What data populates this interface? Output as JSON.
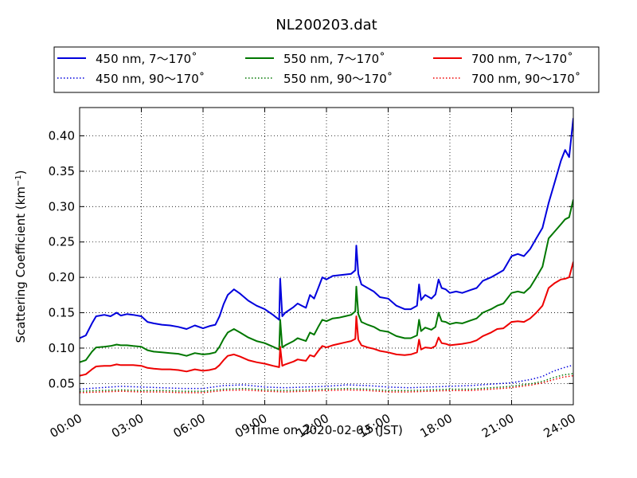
{
  "chart_data": {
    "type": "line",
    "title": "NL200203.dat",
    "xlabel": "Time on 2020-02-03 (JST)",
    "ylabel": "Scattering Coefficient (km",
    "ylabel_unit_exponent": "−1",
    "ylabel_close": ")",
    "xlim": [
      0,
      24
    ],
    "ylim": [
      0.02,
      0.44
    ],
    "x_ticks": [
      0,
      3,
      6,
      9,
      12,
      15,
      18,
      21,
      24
    ],
    "x_tick_labels": [
      "00:00",
      "03:00",
      "06:00",
      "09:00",
      "12:00",
      "15:00",
      "18:00",
      "21:00",
      "24:00"
    ],
    "y_ticks": [
      0.05,
      0.1,
      0.15,
      0.2,
      0.25,
      0.3,
      0.35,
      0.4
    ],
    "y_tick_labels": [
      "0.05",
      "0.10",
      "0.15",
      "0.20",
      "0.25",
      "0.30",
      "0.35",
      "0.40"
    ],
    "grid": true,
    "legend_placement": "top, above plot, 3 columns",
    "series": [
      {
        "name": "450 nm, 7～170˚",
        "color": "#0000dd",
        "style": "solid",
        "x": [
          0.0,
          0.3,
          0.6,
          0.8,
          1.2,
          1.5,
          1.8,
          2.0,
          2.3,
          2.6,
          3.0,
          3.3,
          3.6,
          4.0,
          4.4,
          4.8,
          5.2,
          5.6,
          6.0,
          6.3,
          6.6,
          6.8,
          7.0,
          7.2,
          7.5,
          7.8,
          8.2,
          8.6,
          9.0,
          9.4,
          9.7,
          9.75,
          9.85,
          10.0,
          10.4,
          10.6,
          10.8,
          11.0,
          11.2,
          11.4,
          11.6,
          11.8,
          12.0,
          12.3,
          12.6,
          12.9,
          13.2,
          13.4,
          13.45,
          13.55,
          13.7,
          14.0,
          14.3,
          14.6,
          15.0,
          15.4,
          15.8,
          16.1,
          16.4,
          16.5,
          16.6,
          16.8,
          17.1,
          17.3,
          17.45,
          17.6,
          17.8,
          18.0,
          18.3,
          18.6,
          19.0,
          19.3,
          19.6,
          20.0,
          20.3,
          20.6,
          21.0,
          21.3,
          21.6,
          21.9,
          22.2,
          22.5,
          22.8,
          23.1,
          23.4,
          23.6,
          23.8,
          24.0
        ],
        "y": [
          0.114,
          0.118,
          0.135,
          0.145,
          0.147,
          0.145,
          0.15,
          0.146,
          0.148,
          0.147,
          0.145,
          0.137,
          0.135,
          0.133,
          0.132,
          0.13,
          0.127,
          0.132,
          0.128,
          0.131,
          0.133,
          0.145,
          0.162,
          0.175,
          0.183,
          0.177,
          0.167,
          0.16,
          0.155,
          0.147,
          0.14,
          0.198,
          0.145,
          0.15,
          0.158,
          0.163,
          0.16,
          0.157,
          0.175,
          0.17,
          0.185,
          0.2,
          0.197,
          0.202,
          0.203,
          0.204,
          0.205,
          0.21,
          0.245,
          0.205,
          0.19,
          0.185,
          0.18,
          0.172,
          0.17,
          0.16,
          0.155,
          0.155,
          0.16,
          0.19,
          0.168,
          0.175,
          0.17,
          0.176,
          0.197,
          0.185,
          0.183,
          0.178,
          0.18,
          0.178,
          0.182,
          0.185,
          0.195,
          0.2,
          0.205,
          0.21,
          0.23,
          0.233,
          0.23,
          0.24,
          0.255,
          0.27,
          0.305,
          0.335,
          0.365,
          0.38,
          0.37,
          0.425
        ]
      },
      {
        "name": "550 nm, 7～170˚",
        "color": "#007700",
        "style": "solid",
        "x": [
          0.0,
          0.3,
          0.6,
          0.8,
          1.2,
          1.5,
          1.8,
          2.0,
          2.3,
          2.6,
          3.0,
          3.3,
          3.6,
          4.0,
          4.4,
          4.8,
          5.2,
          5.6,
          6.0,
          6.3,
          6.6,
          6.8,
          7.0,
          7.2,
          7.5,
          7.8,
          8.2,
          8.6,
          9.0,
          9.4,
          9.7,
          9.75,
          9.85,
          10.0,
          10.4,
          10.6,
          10.8,
          11.0,
          11.2,
          11.4,
          11.6,
          11.8,
          12.0,
          12.3,
          12.6,
          12.9,
          13.2,
          13.4,
          13.45,
          13.55,
          13.7,
          14.0,
          14.3,
          14.6,
          15.0,
          15.4,
          15.8,
          16.1,
          16.4,
          16.5,
          16.6,
          16.8,
          17.1,
          17.3,
          17.45,
          17.6,
          17.8,
          18.0,
          18.3,
          18.6,
          19.0,
          19.3,
          19.6,
          20.0,
          20.3,
          20.6,
          21.0,
          21.3,
          21.6,
          21.9,
          22.2,
          22.5,
          22.8,
          23.1,
          23.4,
          23.6,
          23.8,
          24.0
        ],
        "y": [
          0.08,
          0.083,
          0.095,
          0.101,
          0.102,
          0.103,
          0.105,
          0.104,
          0.104,
          0.103,
          0.102,
          0.097,
          0.095,
          0.094,
          0.093,
          0.092,
          0.089,
          0.093,
          0.091,
          0.092,
          0.094,
          0.102,
          0.113,
          0.122,
          0.127,
          0.122,
          0.115,
          0.11,
          0.107,
          0.102,
          0.098,
          0.14,
          0.101,
          0.104,
          0.11,
          0.114,
          0.112,
          0.11,
          0.122,
          0.119,
          0.13,
          0.14,
          0.138,
          0.142,
          0.143,
          0.145,
          0.147,
          0.152,
          0.187,
          0.148,
          0.137,
          0.133,
          0.13,
          0.125,
          0.123,
          0.117,
          0.114,
          0.114,
          0.118,
          0.14,
          0.124,
          0.129,
          0.126,
          0.13,
          0.15,
          0.138,
          0.137,
          0.134,
          0.136,
          0.135,
          0.139,
          0.142,
          0.15,
          0.155,
          0.16,
          0.163,
          0.178,
          0.18,
          0.178,
          0.186,
          0.2,
          0.215,
          0.255,
          0.265,
          0.275,
          0.282,
          0.285,
          0.31
        ]
      },
      {
        "name": "700 nm, 7～170˚",
        "color": "#ee0000",
        "style": "solid",
        "x": [
          0.0,
          0.3,
          0.6,
          0.8,
          1.2,
          1.5,
          1.8,
          2.0,
          2.3,
          2.6,
          3.0,
          3.3,
          3.6,
          4.0,
          4.4,
          4.8,
          5.2,
          5.6,
          6.0,
          6.3,
          6.6,
          6.8,
          7.0,
          7.2,
          7.5,
          7.8,
          8.2,
          8.6,
          9.0,
          9.4,
          9.7,
          9.75,
          9.85,
          10.0,
          10.4,
          10.6,
          10.8,
          11.0,
          11.2,
          11.4,
          11.6,
          11.8,
          12.0,
          12.3,
          12.6,
          12.9,
          13.2,
          13.4,
          13.45,
          13.55,
          13.7,
          14.0,
          14.3,
          14.6,
          15.0,
          15.4,
          15.8,
          16.1,
          16.4,
          16.5,
          16.6,
          16.8,
          17.1,
          17.3,
          17.45,
          17.6,
          17.8,
          18.0,
          18.3,
          18.6,
          19.0,
          19.3,
          19.6,
          20.0,
          20.3,
          20.6,
          21.0,
          21.3,
          21.6,
          21.9,
          22.2,
          22.5,
          22.8,
          23.1,
          23.4,
          23.6,
          23.8,
          24.0
        ],
        "y": [
          0.061,
          0.063,
          0.07,
          0.074,
          0.075,
          0.075,
          0.077,
          0.076,
          0.076,
          0.076,
          0.075,
          0.072,
          0.071,
          0.07,
          0.07,
          0.069,
          0.067,
          0.07,
          0.068,
          0.069,
          0.071,
          0.076,
          0.083,
          0.089,
          0.091,
          0.088,
          0.083,
          0.08,
          0.078,
          0.075,
          0.073,
          0.102,
          0.075,
          0.077,
          0.081,
          0.084,
          0.083,
          0.082,
          0.09,
          0.088,
          0.096,
          0.103,
          0.101,
          0.104,
          0.106,
          0.108,
          0.11,
          0.113,
          0.145,
          0.112,
          0.104,
          0.101,
          0.099,
          0.096,
          0.094,
          0.091,
          0.09,
          0.091,
          0.094,
          0.112,
          0.098,
          0.101,
          0.1,
          0.103,
          0.115,
          0.107,
          0.106,
          0.104,
          0.105,
          0.106,
          0.108,
          0.111,
          0.117,
          0.122,
          0.127,
          0.128,
          0.137,
          0.138,
          0.137,
          0.142,
          0.15,
          0.16,
          0.185,
          0.192,
          0.197,
          0.198,
          0.2,
          0.222
        ]
      },
      {
        "name": "450 nm, 90～170˚",
        "color": "#0000dd",
        "style": "dotted",
        "x": [
          0,
          1,
          2,
          3,
          4,
          5,
          6,
          7,
          8,
          9,
          10,
          11,
          12,
          13,
          14,
          15,
          16,
          17,
          18,
          19,
          20,
          21,
          22,
          22.5,
          23,
          23.5,
          24
        ],
        "y": [
          0.042,
          0.044,
          0.046,
          0.045,
          0.044,
          0.043,
          0.043,
          0.047,
          0.048,
          0.045,
          0.044,
          0.045,
          0.046,
          0.048,
          0.047,
          0.045,
          0.044,
          0.045,
          0.046,
          0.047,
          0.049,
          0.051,
          0.056,
          0.06,
          0.067,
          0.072,
          0.076
        ]
      },
      {
        "name": "550 nm, 90～170˚",
        "color": "#007700",
        "style": "dotted",
        "x": [
          0,
          1,
          2,
          3,
          4,
          5,
          6,
          7,
          8,
          9,
          10,
          11,
          12,
          13,
          14,
          15,
          16,
          17,
          18,
          19,
          20,
          21,
          22,
          22.5,
          23,
          23.5,
          24
        ],
        "y": [
          0.039,
          0.04,
          0.041,
          0.04,
          0.04,
          0.039,
          0.039,
          0.042,
          0.043,
          0.041,
          0.04,
          0.041,
          0.042,
          0.043,
          0.042,
          0.04,
          0.04,
          0.041,
          0.042,
          0.042,
          0.044,
          0.046,
          0.05,
          0.053,
          0.058,
          0.062,
          0.064
        ]
      },
      {
        "name": "700 nm, 90～170˚",
        "color": "#ee0000",
        "style": "dotted",
        "x": [
          0,
          1,
          2,
          3,
          4,
          5,
          6,
          7,
          8,
          9,
          10,
          11,
          12,
          13,
          14,
          15,
          16,
          17,
          18,
          19,
          20,
          21,
          22,
          22.5,
          23,
          23.5,
          24
        ],
        "y": [
          0.037,
          0.038,
          0.039,
          0.038,
          0.038,
          0.037,
          0.037,
          0.04,
          0.041,
          0.039,
          0.038,
          0.039,
          0.04,
          0.041,
          0.04,
          0.038,
          0.038,
          0.039,
          0.04,
          0.04,
          0.042,
          0.044,
          0.048,
          0.051,
          0.055,
          0.059,
          0.061
        ]
      }
    ]
  }
}
